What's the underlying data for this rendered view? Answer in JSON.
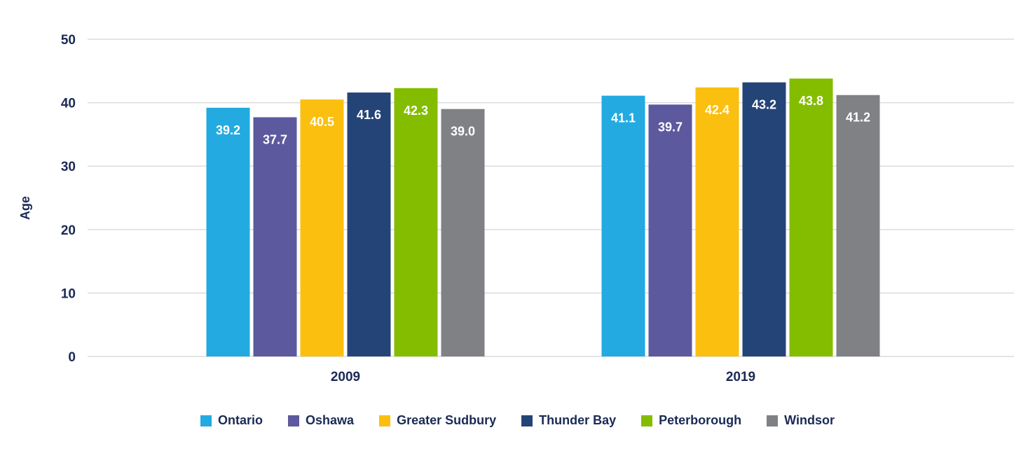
{
  "chart_data": {
    "type": "bar",
    "title": "",
    "xlabel": "",
    "ylabel": "Age",
    "ylim": [
      0,
      50
    ],
    "yticks": [
      "0",
      "10",
      "20",
      "30",
      "40",
      "50"
    ],
    "ytick_values": [
      0,
      10,
      20,
      30,
      40,
      50
    ],
    "grid": true,
    "legend_position": "bottom",
    "categories": [
      "2009",
      "2019"
    ],
    "series": [
      {
        "name": "Ontario",
        "color": "#23aae1",
        "values": [
          39.2,
          41.1
        ],
        "labels": [
          "39.2",
          "41.1"
        ]
      },
      {
        "name": "Oshawa",
        "color": "#5c599e",
        "values": [
          37.7,
          39.7
        ],
        "labels": [
          "37.7",
          "39.7"
        ]
      },
      {
        "name": "Greater Sudbury",
        "color": "#fbbf10",
        "values": [
          40.5,
          42.4
        ],
        "labels": [
          "40.5",
          "42.4"
        ]
      },
      {
        "name": "Thunder Bay",
        "color": "#244477",
        "values": [
          41.6,
          43.2
        ],
        "labels": [
          "41.6",
          "43.2"
        ]
      },
      {
        "name": "Peterborough",
        "color": "#84bd00",
        "values": [
          42.3,
          43.8
        ],
        "labels": [
          "42.3",
          "43.8"
        ]
      },
      {
        "name": "Windsor",
        "color": "#808184",
        "values": [
          39.0,
          41.2
        ],
        "labels": [
          "39.0",
          "41.2"
        ]
      }
    ]
  }
}
